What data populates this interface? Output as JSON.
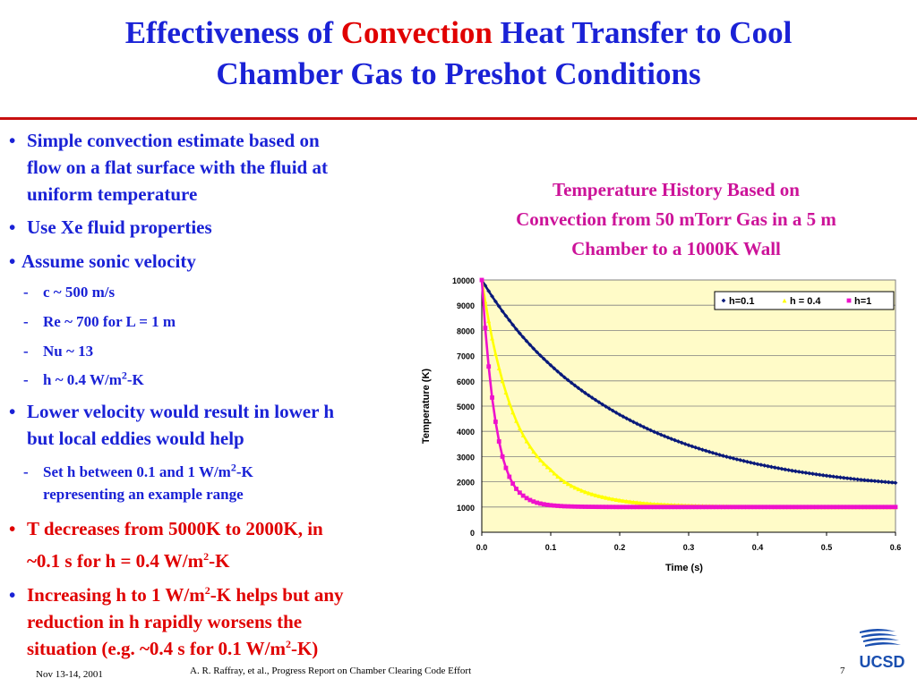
{
  "slide": {
    "title_part1": "Effectiveness of ",
    "title_highlight": "Convection",
    "title_part2": " Heat Transfer to Cool",
    "title_line2": "Chamber Gas to Preshot Conditions",
    "footer_date": "Nov 13-14, 2001",
    "footer_text": "A. R. Raffray, et al., Progress Report on Chamber Clearing Code Effort",
    "page_number": "7",
    "logo_text": "UCSD"
  },
  "bullets": {
    "b1_line1": "Simple convection estimate based on",
    "b1_line2": "flow on a flat surface with the fluid at",
    "b1_line3": "uniform temperature",
    "b2": "Use Xe fluid properties",
    "b3": "Assume sonic velocity",
    "s1": "c ~ 500 m/s",
    "s2": "Re ~ 700 for L = 1 m",
    "s3": "Nu ~ 13",
    "s4_pre": "h ~ 0.4 W/m",
    "s4_sup": "2",
    "s4_post": "-K",
    "b4_line1": "Lower velocity would result in lower h",
    "b4_line2": "but local eddies would help",
    "s5_pre": "Set h between 0.1 and 1 W/m",
    "s5_sup": "2",
    "s5_post": "-K",
    "s5_line2": "representing an example range",
    "b5_line1": "T decreases from 5000K to 2000K, in",
    "b5_line2_pre": "~0.1 s for h = 0.4 W/m",
    "b5_line2_sup": "2",
    "b5_line2_post": "-K",
    "b6_line1_pre": "Increasing h to 1 W/m",
    "b6_line1_sup": "2",
    "b6_line1_post": "-K helps but any",
    "b6_line2": "reduction in h rapidly worsens the",
    "b6_line3_pre": "situation (e.g. ~0.4 s for 0.1 W/m",
    "b6_line3_sup": "2",
    "b6_line3_post": "-K)"
  },
  "colors": {
    "title_blue": "#1a22d6",
    "highlight_red": "#e00000",
    "chart_title_magenta": "#cc1399",
    "plot_background": "#fffbc8"
  },
  "chart_data": {
    "type": "line",
    "title_line1": "Temperature History Based on",
    "title_line2": "Convection from 50 mTorr Gas in a 5 m",
    "title_line3": "Chamber to a 1000K Wall",
    "xlabel": "Time (s)",
    "ylabel": "Temperature (K)",
    "xlim": [
      0,
      0.6
    ],
    "ylim": [
      0,
      10000
    ],
    "x_ticks": [
      "0.0",
      "0.1",
      "0.2",
      "0.3",
      "0.4",
      "0.5",
      "0.6"
    ],
    "y_ticks": [
      "0",
      "1000",
      "2000",
      "3000",
      "4000",
      "5000",
      "6000",
      "7000",
      "8000",
      "9000",
      "10000"
    ],
    "grid": true,
    "legend_position": "top-right",
    "x": [
      0.0,
      0.005,
      0.01,
      0.02,
      0.03,
      0.04,
      0.05,
      0.06,
      0.08,
      0.1,
      0.12,
      0.15,
      0.2,
      0.25,
      0.3,
      0.35,
      0.4,
      0.45,
      0.5,
      0.55,
      0.6
    ],
    "series": [
      {
        "name": "h=0.1",
        "color": "#0a1a7a",
        "marker": "diamond",
        "values": [
          10000,
          9780,
          9560,
          9150,
          8760,
          8400,
          8050,
          7730,
          7140,
          6620,
          6140,
          5520,
          4660,
          3980,
          3450,
          3030,
          2700,
          2440,
          2240,
          2080,
          1960
        ]
      },
      {
        "name": "h = 0.4",
        "color": "#ffff00",
        "marker": "triangle",
        "values": [
          10000,
          9160,
          8380,
          7070,
          6000,
          5130,
          4420,
          3850,
          3020,
          2470,
          2000,
          1600,
          1270,
          1120,
          1060,
          1030,
          1010,
          1000,
          1000,
          1000,
          1000
        ]
      },
      {
        "name": "h=1",
        "color": "#ee11cc",
        "marker": "square",
        "values": [
          10000,
          8100,
          6570,
          4380,
          3000,
          2200,
          1720,
          1450,
          1170,
          1070,
          1030,
          1010,
          1000,
          1000,
          1000,
          1000,
          1000,
          1000,
          1000,
          1000,
          1000
        ]
      }
    ]
  }
}
